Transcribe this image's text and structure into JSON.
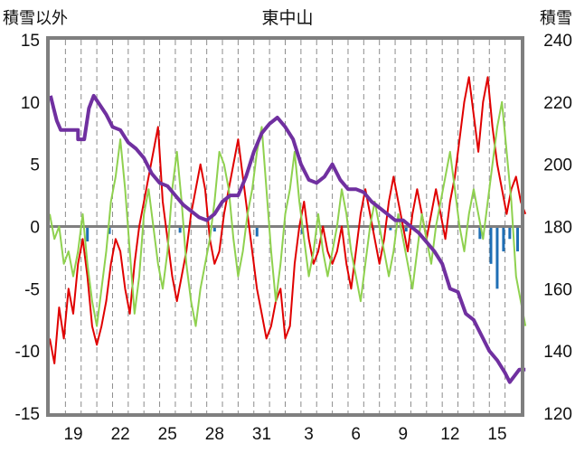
{
  "chart_data": {
    "type": "line",
    "title": "東中山",
    "left_axis": {
      "label": "積雪以外",
      "ylim": [
        -15,
        15
      ],
      "ticks": [
        15,
        10,
        5,
        0,
        -5,
        -10,
        -15
      ]
    },
    "right_axis": {
      "label": "積雪",
      "ylim": [
        120,
        240
      ],
      "ticks": [
        240,
        220,
        200,
        180,
        160,
        140,
        120
      ]
    },
    "x_axis": {
      "tick_labels": [
        "19",
        "22",
        "25",
        "28",
        "31",
        "3",
        "6",
        "9",
        "12",
        "15"
      ],
      "range_days": [
        0,
        30
      ]
    },
    "grid": "vertical dashed (daily)",
    "series": [
      {
        "id": "red",
        "color": "#e00000",
        "axis": "left",
        "points": [
          [
            0.0,
            -9
          ],
          [
            0.3,
            -11
          ],
          [
            0.6,
            -6.5
          ],
          [
            0.9,
            -9
          ],
          [
            1.2,
            -5
          ],
          [
            1.5,
            -7
          ],
          [
            1.8,
            -3
          ],
          [
            2.1,
            -1
          ],
          [
            2.4,
            -4
          ],
          [
            2.7,
            -8
          ],
          [
            3.0,
            -9.5
          ],
          [
            3.3,
            -8
          ],
          [
            3.6,
            -6
          ],
          [
            3.9,
            -3
          ],
          [
            4.2,
            -1
          ],
          [
            4.5,
            -2
          ],
          [
            4.8,
            -5
          ],
          [
            5.1,
            -7
          ],
          [
            5.4,
            -3
          ],
          [
            5.7,
            0
          ],
          [
            6.0,
            2
          ],
          [
            6.3,
            4
          ],
          [
            6.6,
            6
          ],
          [
            6.9,
            8
          ],
          [
            7.2,
            2
          ],
          [
            7.5,
            -1
          ],
          [
            7.8,
            -4
          ],
          [
            8.1,
            -6
          ],
          [
            8.4,
            -4
          ],
          [
            8.7,
            -2
          ],
          [
            9.0,
            1
          ],
          [
            9.3,
            3
          ],
          [
            9.6,
            5
          ],
          [
            9.9,
            3
          ],
          [
            10.2,
            -1
          ],
          [
            10.5,
            -3
          ],
          [
            10.8,
            -2
          ],
          [
            11.1,
            1
          ],
          [
            11.4,
            3
          ],
          [
            11.7,
            5
          ],
          [
            12.0,
            7
          ],
          [
            12.3,
            4
          ],
          [
            12.6,
            1
          ],
          [
            12.9,
            -2
          ],
          [
            13.2,
            -5
          ],
          [
            13.5,
            -7
          ],
          [
            13.8,
            -9
          ],
          [
            14.1,
            -8
          ],
          [
            14.4,
            -6
          ],
          [
            14.7,
            -5
          ],
          [
            15.0,
            -9
          ],
          [
            15.3,
            -8
          ],
          [
            15.6,
            -3
          ],
          [
            15.9,
            0
          ],
          [
            16.2,
            2
          ],
          [
            16.5,
            -1
          ],
          [
            16.8,
            -3
          ],
          [
            17.1,
            -2
          ],
          [
            17.4,
            0
          ],
          [
            17.7,
            -2
          ],
          [
            18.0,
            -3
          ],
          [
            18.3,
            -2
          ],
          [
            18.6,
            0
          ],
          [
            18.9,
            -3
          ],
          [
            19.2,
            -5
          ],
          [
            19.5,
            -2
          ],
          [
            19.8,
            1
          ],
          [
            20.1,
            3
          ],
          [
            20.4,
            1
          ],
          [
            20.7,
            -1
          ],
          [
            21.0,
            -3
          ],
          [
            21.3,
            -1
          ],
          [
            21.6,
            2
          ],
          [
            21.9,
            4
          ],
          [
            22.2,
            2
          ],
          [
            22.5,
            0
          ],
          [
            22.8,
            -2
          ],
          [
            23.1,
            1
          ],
          [
            23.4,
            3
          ],
          [
            23.7,
            1
          ],
          [
            24.0,
            -1
          ],
          [
            24.3,
            1
          ],
          [
            24.6,
            3
          ],
          [
            24.9,
            1
          ],
          [
            25.2,
            -1
          ],
          [
            25.5,
            2
          ],
          [
            25.8,
            4
          ],
          [
            26.1,
            7
          ],
          [
            26.4,
            10
          ],
          [
            26.7,
            12
          ],
          [
            27.0,
            9
          ],
          [
            27.3,
            6
          ],
          [
            27.6,
            10
          ],
          [
            27.9,
            12
          ],
          [
            28.2,
            8
          ],
          [
            28.5,
            5
          ],
          [
            28.8,
            3
          ],
          [
            29.1,
            1
          ],
          [
            29.4,
            3
          ],
          [
            29.7,
            4
          ],
          [
            30.0,
            2
          ],
          [
            30.3,
            1
          ]
        ]
      },
      {
        "id": "green",
        "color": "#8fd14f",
        "axis": "left",
        "points": [
          [
            0.0,
            1
          ],
          [
            0.3,
            -1
          ],
          [
            0.6,
            0
          ],
          [
            0.9,
            -3
          ],
          [
            1.2,
            -2
          ],
          [
            1.5,
            -4
          ],
          [
            1.8,
            -2
          ],
          [
            2.1,
            1
          ],
          [
            2.4,
            -3
          ],
          [
            2.7,
            -6
          ],
          [
            3.0,
            -8
          ],
          [
            3.3,
            -5
          ],
          [
            3.6,
            -2
          ],
          [
            3.9,
            2
          ],
          [
            4.2,
            4
          ],
          [
            4.5,
            7
          ],
          [
            4.8,
            3
          ],
          [
            5.1,
            -2
          ],
          [
            5.4,
            -7
          ],
          [
            5.7,
            -4
          ],
          [
            6.0,
            1
          ],
          [
            6.3,
            3
          ],
          [
            6.6,
            0
          ],
          [
            6.9,
            -3
          ],
          [
            7.2,
            -5
          ],
          [
            7.5,
            -2
          ],
          [
            7.8,
            3
          ],
          [
            8.1,
            6
          ],
          [
            8.4,
            2
          ],
          [
            8.7,
            -3
          ],
          [
            9.0,
            -6
          ],
          [
            9.3,
            -8
          ],
          [
            9.6,
            -5
          ],
          [
            9.9,
            -3
          ],
          [
            10.2,
            -1
          ],
          [
            10.5,
            2
          ],
          [
            10.8,
            6
          ],
          [
            11.1,
            5
          ],
          [
            11.4,
            3
          ],
          [
            11.7,
            -1
          ],
          [
            12.0,
            -4
          ],
          [
            12.3,
            -2
          ],
          [
            12.6,
            1
          ],
          [
            12.9,
            3
          ],
          [
            13.2,
            6
          ],
          [
            13.5,
            8
          ],
          [
            13.8,
            3
          ],
          [
            14.1,
            -2
          ],
          [
            14.4,
            -6
          ],
          [
            14.7,
            -3
          ],
          [
            15.0,
            1
          ],
          [
            15.3,
            3
          ],
          [
            15.6,
            6
          ],
          [
            15.9,
            2
          ],
          [
            16.2,
            -1
          ],
          [
            16.5,
            -4
          ],
          [
            16.8,
            -2
          ],
          [
            17.1,
            1
          ],
          [
            17.4,
            -2
          ],
          [
            17.7,
            -4
          ],
          [
            18.0,
            -2
          ],
          [
            18.3,
            0
          ],
          [
            18.6,
            3
          ],
          [
            18.9,
            1
          ],
          [
            19.2,
            -2
          ],
          [
            19.5,
            -4
          ],
          [
            19.8,
            -6
          ],
          [
            20.1,
            -3
          ],
          [
            20.4,
            0
          ],
          [
            20.7,
            2
          ],
          [
            21.0,
            0
          ],
          [
            21.3,
            -2
          ],
          [
            21.6,
            -4
          ],
          [
            21.9,
            -2
          ],
          [
            22.2,
            1
          ],
          [
            22.5,
            -1
          ],
          [
            22.8,
            -3
          ],
          [
            23.1,
            -5
          ],
          [
            23.4,
            -2
          ],
          [
            23.7,
            1
          ],
          [
            24.0,
            -1
          ],
          [
            24.3,
            -3
          ],
          [
            24.6,
            0
          ],
          [
            24.9,
            2
          ],
          [
            25.2,
            4
          ],
          [
            25.5,
            6
          ],
          [
            25.8,
            3
          ],
          [
            26.1,
            0
          ],
          [
            26.4,
            -2
          ],
          [
            26.7,
            1
          ],
          [
            27.0,
            3
          ],
          [
            27.3,
            1
          ],
          [
            27.6,
            -1
          ],
          [
            27.9,
            2
          ],
          [
            28.2,
            5
          ],
          [
            28.5,
            8
          ],
          [
            28.8,
            10
          ],
          [
            29.1,
            6
          ],
          [
            29.4,
            2
          ],
          [
            29.7,
            -4
          ],
          [
            30.0,
            -6
          ],
          [
            30.3,
            -8
          ]
        ]
      },
      {
        "id": "purple",
        "color": "#7030a0",
        "axis": "right",
        "points": [
          [
            0.05,
            222
          ],
          [
            0.25,
            218
          ],
          [
            0.45,
            214
          ],
          [
            0.7,
            211
          ],
          [
            1.0,
            211
          ],
          [
            1.4,
            211
          ],
          [
            1.8,
            211
          ],
          [
            1.8,
            208
          ],
          [
            2.2,
            208
          ],
          [
            2.5,
            218
          ],
          [
            2.8,
            222
          ],
          [
            3.2,
            219
          ],
          [
            3.6,
            216
          ],
          [
            4.0,
            212
          ],
          [
            4.5,
            211
          ],
          [
            5.0,
            207
          ],
          [
            5.5,
            205
          ],
          [
            6.0,
            202
          ],
          [
            6.5,
            197
          ],
          [
            7.0,
            194
          ],
          [
            7.5,
            193
          ],
          [
            8.0,
            190
          ],
          [
            8.5,
            187
          ],
          [
            9.0,
            185
          ],
          [
            9.5,
            183
          ],
          [
            10.0,
            182
          ],
          [
            10.5,
            184
          ],
          [
            11.0,
            188
          ],
          [
            11.5,
            190
          ],
          [
            12.0,
            190
          ],
          [
            12.5,
            196
          ],
          [
            13.0,
            204
          ],
          [
            13.5,
            210
          ],
          [
            14.0,
            213
          ],
          [
            14.5,
            215
          ],
          [
            15.0,
            212
          ],
          [
            15.5,
            208
          ],
          [
            16.0,
            200
          ],
          [
            16.5,
            195
          ],
          [
            17.0,
            194
          ],
          [
            17.5,
            196
          ],
          [
            18.0,
            200
          ],
          [
            18.5,
            195
          ],
          [
            19.0,
            192
          ],
          [
            19.5,
            192
          ],
          [
            20.0,
            191
          ],
          [
            20.5,
            188
          ],
          [
            21.0,
            186
          ],
          [
            21.5,
            184
          ],
          [
            22.0,
            182
          ],
          [
            22.5,
            182
          ],
          [
            23.0,
            180
          ],
          [
            23.5,
            178
          ],
          [
            24.0,
            175
          ],
          [
            24.5,
            172
          ],
          [
            25.0,
            168
          ],
          [
            25.5,
            160
          ],
          [
            26.0,
            159
          ],
          [
            26.5,
            152
          ],
          [
            27.0,
            150
          ],
          [
            27.5,
            145
          ],
          [
            28.0,
            140
          ],
          [
            28.5,
            137
          ],
          [
            29.0,
            133
          ],
          [
            29.3,
            130
          ],
          [
            29.6,
            132
          ],
          [
            29.9,
            134
          ],
          [
            30.3,
            134
          ]
        ]
      }
    ],
    "bars": {
      "color": "#1f6fb5",
      "axis": "left",
      "points": [
        [
          2.4,
          -1.2
        ],
        [
          3.8,
          -0.6
        ],
        [
          8.3,
          -0.5
        ],
        [
          10.5,
          -0.4
        ],
        [
          13.2,
          -0.8
        ],
        [
          16.1,
          -0.6
        ],
        [
          20.6,
          -0.3
        ],
        [
          21.7,
          -0.3
        ],
        [
          22.7,
          -0.4
        ],
        [
          27.4,
          -1.0
        ],
        [
          28.1,
          -3.0
        ],
        [
          28.5,
          -5.0
        ],
        [
          28.9,
          -2.0
        ],
        [
          29.3,
          -1.0
        ],
        [
          29.8,
          -2.0
        ]
      ]
    }
  }
}
